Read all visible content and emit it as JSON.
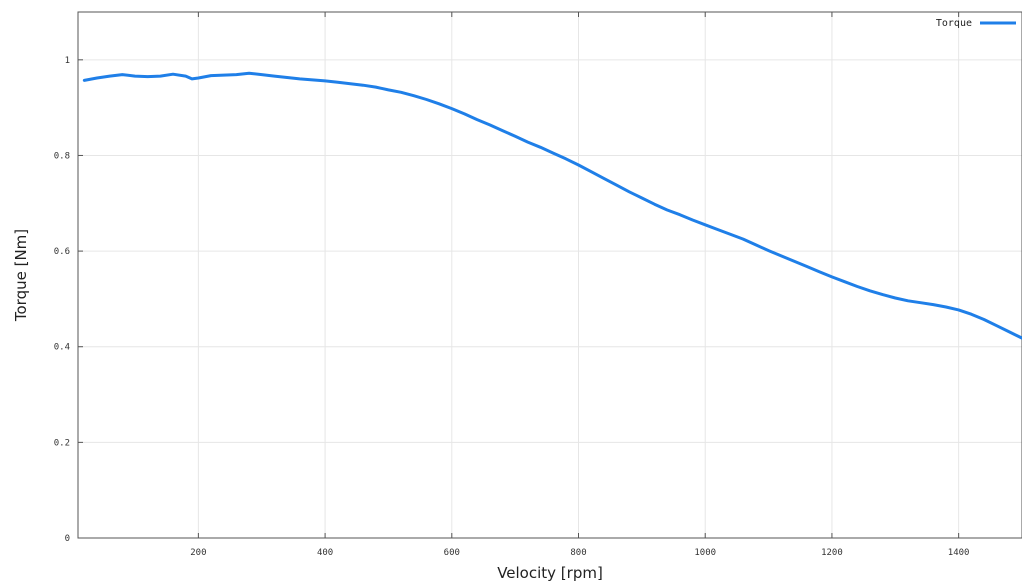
{
  "colors": {
    "series": "#1f7fe8",
    "grid": "#e6e6e6",
    "frame": "#555555"
  },
  "chart_data": {
    "type": "line",
    "xlabel": "Velocity [rpm]",
    "ylabel": "Torque [Nm]",
    "xlim": [
      10,
      1500
    ],
    "ylim": [
      0,
      1.1
    ],
    "x_ticks": [
      200,
      400,
      600,
      800,
      1000,
      1200,
      1400
    ],
    "x_tick_labels": [
      "200",
      "400",
      "600",
      "800",
      "1000",
      "1200",
      "1400"
    ],
    "y_ticks": [
      0,
      0.2,
      0.4,
      0.6,
      0.8,
      1
    ],
    "y_tick_labels": [
      "0",
      "0.2",
      "0.4",
      "0.6",
      "0.8",
      "1"
    ],
    "grid": true,
    "legend_position": "top-right",
    "series": [
      {
        "name": "Torque",
        "x": [
          20,
          40,
          60,
          80,
          100,
          120,
          140,
          160,
          180,
          190,
          200,
          220,
          240,
          260,
          280,
          300,
          320,
          340,
          360,
          380,
          400,
          420,
          440,
          460,
          480,
          500,
          520,
          540,
          560,
          580,
          600,
          620,
          640,
          660,
          680,
          700,
          720,
          740,
          760,
          780,
          800,
          820,
          840,
          860,
          880,
          900,
          920,
          940,
          960,
          980,
          1000,
          1020,
          1040,
          1060,
          1080,
          1100,
          1120,
          1140,
          1160,
          1180,
          1200,
          1220,
          1240,
          1260,
          1280,
          1300,
          1320,
          1340,
          1360,
          1380,
          1400,
          1420,
          1440,
          1460,
          1480,
          1500
        ],
        "y": [
          0.957,
          0.962,
          0.966,
          0.969,
          0.966,
          0.965,
          0.966,
          0.97,
          0.966,
          0.96,
          0.962,
          0.967,
          0.968,
          0.969,
          0.972,
          0.969,
          0.966,
          0.963,
          0.96,
          0.958,
          0.956,
          0.953,
          0.95,
          0.947,
          0.943,
          0.937,
          0.932,
          0.925,
          0.917,
          0.908,
          0.898,
          0.887,
          0.875,
          0.864,
          0.852,
          0.84,
          0.828,
          0.817,
          0.805,
          0.793,
          0.78,
          0.766,
          0.752,
          0.738,
          0.724,
          0.711,
          0.698,
          0.686,
          0.676,
          0.665,
          0.655,
          0.645,
          0.635,
          0.625,
          0.613,
          0.601,
          0.59,
          0.579,
          0.568,
          0.557,
          0.546,
          0.536,
          0.526,
          0.517,
          0.509,
          0.502,
          0.496,
          0.492,
          0.488,
          0.483,
          0.477,
          0.468,
          0.457,
          0.444,
          0.431,
          0.418
        ]
      }
    ]
  }
}
